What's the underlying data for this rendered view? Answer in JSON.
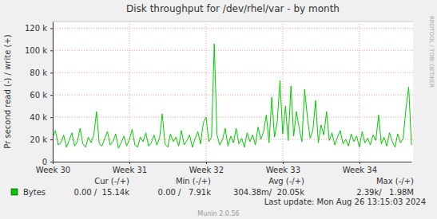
{
  "chart_data": {
    "type": "line",
    "title": "Disk throughput for /dev/rhel/var - by month",
    "y_label": "Pr second read (-) / write (+)",
    "categories": [
      "Week 30",
      null,
      null,
      null,
      null,
      null,
      null,
      null,
      null,
      null,
      null,
      null,
      null,
      null,
      null,
      null,
      null,
      null,
      null,
      null,
      null,
      null,
      null,
      null,
      null,
      null,
      null,
      null,
      "Week 31",
      null,
      null,
      null,
      null,
      null,
      null,
      null,
      null,
      null,
      null,
      null,
      null,
      null,
      null,
      null,
      null,
      null,
      null,
      null,
      null,
      null,
      null,
      null,
      null,
      null,
      null,
      null,
      "Week 32",
      null,
      null,
      null,
      null,
      null,
      null,
      null,
      null,
      null,
      null,
      null,
      null,
      null,
      null,
      null,
      null,
      null,
      null,
      null,
      null,
      null,
      null,
      null,
      null,
      null,
      null,
      null,
      "Week 33",
      null,
      null,
      null,
      null,
      null,
      null,
      null,
      null,
      null,
      null,
      null,
      null,
      null,
      null,
      null,
      null,
      null,
      null,
      null,
      null,
      null,
      null,
      null,
      null,
      null,
      null,
      null,
      "Week 34",
      null,
      null,
      null,
      null,
      null,
      null,
      null,
      null,
      null,
      null,
      null,
      null,
      null,
      null,
      null,
      null,
      null,
      null,
      null
    ],
    "series": [
      {
        "name": "Bytes",
        "color": "#00cc00",
        "values": [
          22000,
          28000,
          15000,
          17000,
          24000,
          13000,
          19000,
          26000,
          14000,
          18000,
          30000,
          16000,
          13000,
          22000,
          17000,
          24000,
          45000,
          16000,
          14000,
          21000,
          27000,
          15000,
          18000,
          25000,
          12000,
          17000,
          23000,
          14000,
          20000,
          29000,
          15000,
          13000,
          22000,
          18000,
          26000,
          14000,
          17000,
          24000,
          15000,
          21000,
          43000,
          16000,
          13000,
          25000,
          18000,
          22000,
          14000,
          28000,
          15000,
          19000,
          24000,
          13000,
          21000,
          27000,
          16000,
          35000,
          40000,
          18000,
          22000,
          106000,
          24000,
          15000,
          20000,
          30000,
          14000,
          23000,
          17000,
          30000,
          16000,
          21000,
          13000,
          26000,
          18000,
          24000,
          15000,
          31000,
          20000,
          27000,
          42000,
          17000,
          58000,
          22000,
          36000,
          73000,
          25000,
          50000,
          19000,
          68000,
          23000,
          45000,
          30000,
          18000,
          65000,
          40000,
          21000,
          28000,
          55000,
          17000,
          33000,
          24000,
          45000,
          19000,
          26000,
          15000,
          22000,
          28000,
          16000,
          20000,
          14000,
          25000,
          18000,
          23000,
          13000,
          27000,
          17000,
          21000,
          15000,
          24000,
          19000,
          42000,
          16000,
          22000,
          14000,
          26000,
          18000,
          13000,
          25000,
          17000,
          21000,
          48000,
          67000,
          15000
        ]
      }
    ],
    "ylim": [
      0,
      126000
    ],
    "yticks": [
      0,
      {
        "value": 20000,
        "label": "20 k"
      },
      {
        "value": 40000,
        "label": "40 k"
      },
      {
        "value": 60000,
        "label": "60 k"
      },
      {
        "value": 80000,
        "label": "80 k"
      },
      {
        "value": 100000,
        "label": "100 k"
      },
      {
        "value": 120000,
        "label": "120 k"
      }
    ],
    "grid": true,
    "stats": {
      "headers": [
        "Cur (-/+)",
        "Min (-/+)",
        "Avg (-/+)",
        "Max (-/+)"
      ],
      "values": [
        "0.00 /  15.14k",
        "0.00 /   7.91k",
        "304.38m/  20.05k",
        "2.39k/   1.98M"
      ]
    },
    "footer": "Last update: Mon Aug 26 13:15:03 2024",
    "credit": "Munin 2.0.56",
    "watermark": "RRDTOOL / TOBI OETIKER"
  }
}
